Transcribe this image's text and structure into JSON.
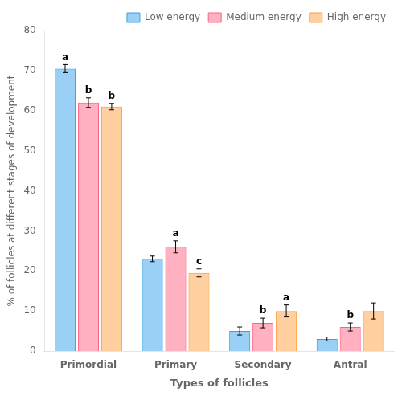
{
  "chart_data": {
    "type": "bar",
    "categories": [
      "Primordial",
      "Primary",
      "Secondary",
      "Antral"
    ],
    "series": [
      {
        "name": "Low energy",
        "values": [
          70.5,
          23.0,
          5.0,
          3.0
        ],
        "errors": [
          1.0,
          0.7,
          1.0,
          0.5
        ],
        "annotations": [
          "a",
          null,
          null,
          null
        ]
      },
      {
        "name": "Medium energy",
        "values": [
          62.0,
          26.0,
          7.0,
          6.0
        ],
        "errors": [
          1.2,
          1.5,
          1.2,
          1.0
        ],
        "annotations": [
          "b",
          "a",
          "b",
          "b"
        ]
      },
      {
        "name": "High energy",
        "values": [
          61.0,
          19.5,
          10.0,
          10.0
        ],
        "errors": [
          0.8,
          1.0,
          1.5,
          2.0
        ],
        "annotations": [
          "b",
          "c",
          "a",
          null
        ]
      }
    ],
    "ylabel": "% of follicles at different stages of development",
    "xlabel": "Types of follicles",
    "ylim": [
      0,
      80
    ],
    "yticks": [
      0,
      10,
      20,
      30,
      40,
      50,
      60,
      70,
      80
    ],
    "grid": false,
    "legend": "upper right"
  }
}
